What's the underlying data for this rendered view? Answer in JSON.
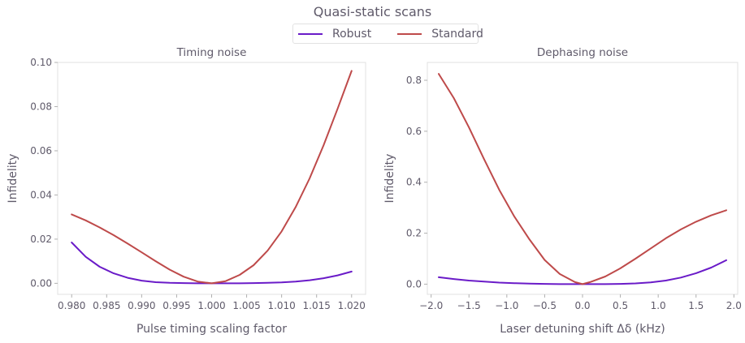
{
  "figure": {
    "title": "Quasi-static scans",
    "legend": [
      {
        "label": "Robust",
        "color": "#6a1bc8"
      },
      {
        "label": "Standard",
        "color": "#be4a4a"
      }
    ],
    "colors": {
      "axis": "#e0e0e0",
      "text": "#5f5a6a",
      "robust": "#6a1bc8",
      "standard": "#be4a4a"
    }
  },
  "chart_data": [
    {
      "type": "line",
      "title": "Timing noise",
      "xlabel": "Pulse timing scaling factor",
      "ylabel": "Infidelity",
      "xlim": [
        0.978,
        1.022
      ],
      "ylim": [
        -0.005,
        0.1
      ],
      "xticks": [
        0.98,
        0.985,
        0.99,
        0.995,
        1.0,
        1.005,
        1.01,
        1.015,
        1.02
      ],
      "xtick_labels": [
        "0.980",
        "0.985",
        "0.990",
        "0.995",
        "1.000",
        "1.005",
        "1.010",
        "1.015",
        "1.020"
      ],
      "yticks": [
        0.0,
        0.02,
        0.04,
        0.06,
        0.08,
        0.1
      ],
      "ytick_labels": [
        "0.00",
        "0.02",
        "0.04",
        "0.06",
        "0.08",
        "0.10"
      ],
      "grid": false,
      "x": [
        0.98,
        0.982,
        0.984,
        0.986,
        0.988,
        0.99,
        0.992,
        0.994,
        0.996,
        0.998,
        1.0,
        1.002,
        1.004,
        1.006,
        1.008,
        1.01,
        1.012,
        1.014,
        1.016,
        1.018,
        1.02
      ],
      "series": [
        {
          "name": "Robust",
          "color": "#6a1bc8",
          "values": [
            0.0185,
            0.012,
            0.0075,
            0.0045,
            0.0025,
            0.0012,
            0.0005,
            0.0002,
            0.0001,
            0.0,
            0.0,
            0.0,
            0.0,
            0.0001,
            0.0002,
            0.0004,
            0.0008,
            0.0014,
            0.0023,
            0.0036,
            0.0053
          ]
        },
        {
          "name": "Standard",
          "color": "#be4a4a",
          "values": [
            0.0312,
            0.0285,
            0.0253,
            0.0218,
            0.018,
            0.014,
            0.01,
            0.0062,
            0.003,
            0.0008,
            0.0,
            0.001,
            0.0038,
            0.0082,
            0.0148,
            0.0235,
            0.0345,
            0.0475,
            0.0625,
            0.079,
            0.0962
          ]
        }
      ]
    },
    {
      "type": "line",
      "title": "Dephasing noise",
      "xlabel": "Laser detuning shift Δδ (kHz)",
      "ylabel": "Infidelity",
      "xlim": [
        -2.05,
        2.05
      ],
      "ylim": [
        -0.04,
        0.87
      ],
      "xticks": [
        -2.0,
        -1.5,
        -1.0,
        -0.5,
        0.0,
        0.5,
        1.0,
        1.5,
        2.0
      ],
      "xtick_labels": [
        "−2.0",
        "−1.5",
        "−1.0",
        "−0.5",
        "0.0",
        "0.5",
        "1.0",
        "1.5",
        "2.0"
      ],
      "yticks": [
        0.0,
        0.2,
        0.4,
        0.6,
        0.8
      ],
      "ytick_labels": [
        "0.0",
        "0.2",
        "0.4",
        "0.6",
        "0.8"
      ],
      "grid": false,
      "x": [
        -1.9,
        -1.7,
        -1.5,
        -1.3,
        -1.1,
        -0.9,
        -0.7,
        -0.5,
        -0.3,
        -0.1,
        0.0,
        0.1,
        0.3,
        0.5,
        0.7,
        0.9,
        1.1,
        1.3,
        1.5,
        1.7,
        1.9
      ],
      "series": [
        {
          "name": "Robust",
          "color": "#6a1bc8",
          "values": [
            0.027,
            0.02,
            0.014,
            0.01,
            0.006,
            0.004,
            0.002,
            0.001,
            0.0,
            0.0,
            0.0,
            0.0,
            0.0,
            0.001,
            0.003,
            0.007,
            0.014,
            0.026,
            0.043,
            0.065,
            0.094
          ]
        },
        {
          "name": "Standard",
          "color": "#be4a4a",
          "values": [
            0.825,
            0.73,
            0.615,
            0.49,
            0.37,
            0.265,
            0.175,
            0.095,
            0.04,
            0.008,
            0.0,
            0.008,
            0.03,
            0.062,
            0.1,
            0.14,
            0.18,
            0.215,
            0.245,
            0.27,
            0.29
          ]
        }
      ]
    }
  ]
}
